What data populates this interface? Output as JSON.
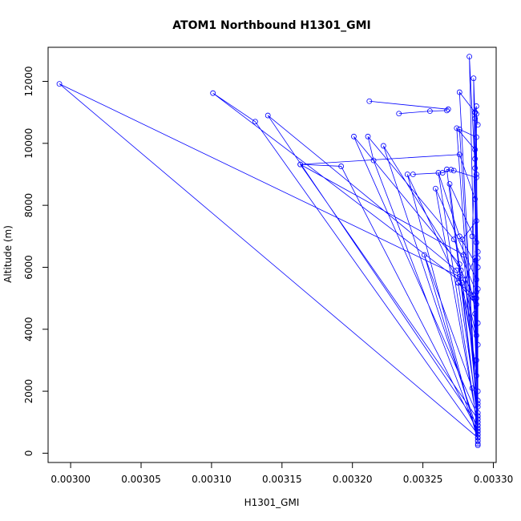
{
  "chart_data": {
    "type": "line",
    "title": "ATOM1 Northbound H1301_GMI",
    "xlabel": "H1301_GMI",
    "ylabel": "Altitude (m)",
    "xlim": [
      0.002984,
      0.003302
    ],
    "ylim": [
      -300,
      13100
    ],
    "xticks": [
      0.003,
      0.00305,
      0.0031,
      0.00315,
      0.0032,
      0.00325,
      0.0033
    ],
    "xtick_labels": [
      "0.00300",
      "0.00305",
      "0.00310",
      "0.00315",
      "0.00320",
      "0.00325",
      "0.00330"
    ],
    "yticks": [
      0,
      2000,
      4000,
      6000,
      8000,
      10000,
      12000
    ],
    "ytick_labels": [
      "0",
      "2000",
      "4000",
      "6000",
      "8000",
      "10000",
      "12000"
    ],
    "grid": false,
    "series_color": "#0000ff",
    "marker": "open-circle",
    "series": [
      {
        "points": [
          [
            0.003289,
            250
          ],
          [
            0.003289,
            400
          ],
          [
            0.003289,
            700
          ],
          [
            0.003289,
            1500
          ],
          [
            0.003288,
            3000
          ],
          [
            0.003286,
            5000
          ],
          [
            0.003285,
            7000
          ],
          [
            0.003287,
            9500
          ],
          [
            0.003288,
            11200
          ],
          [
            0.003287,
            11000
          ],
          [
            0.003288,
            9000
          ],
          [
            0.003289,
            6500
          ],
          [
            0.003287,
            4500
          ],
          [
            0.003289,
            2000
          ],
          [
            0.003289,
            800
          ],
          [
            0.003289,
            300
          ],
          [
            0.003287,
            3000
          ],
          [
            0.003276,
            5700
          ],
          [
            0.002992,
            11920
          ],
          [
            0.003289,
            500
          ],
          [
            0.003288,
            2500
          ],
          [
            0.003278,
            5500
          ],
          [
            0.003101,
            11620
          ],
          [
            0.003131,
            10700
          ],
          [
            0.003289,
            600
          ],
          [
            0.003289,
            3500
          ],
          [
            0.003274,
            5900
          ],
          [
            0.00314,
            10900
          ],
          [
            0.003289,
            900
          ],
          [
            0.003289,
            4200
          ],
          [
            0.003279,
            6400
          ],
          [
            0.003163,
            9320
          ],
          [
            0.003192,
            9260
          ],
          [
            0.003289,
            700
          ],
          [
            0.003288,
            3800
          ],
          [
            0.003276,
            6100
          ],
          [
            0.003201,
            10220
          ],
          [
            0.003289,
            1200
          ],
          [
            0.003288,
            5200
          ],
          [
            0.003272,
            6900
          ],
          [
            0.003211,
            10220
          ],
          [
            0.003215,
            9450
          ],
          [
            0.003289,
            600
          ],
          [
            0.003285,
            2100
          ],
          [
            0.003251,
            6400
          ],
          [
            0.003289,
            500
          ],
          [
            0.003287,
            5000
          ],
          [
            0.003277,
            5900
          ],
          [
            0.003222,
            9920
          ],
          [
            0.003289,
            700
          ],
          [
            0.003288,
            4800
          ],
          [
            0.003275,
            5500
          ],
          [
            0.003239,
            9000
          ],
          [
            0.003289,
            400
          ],
          [
            0.003289,
            6000
          ],
          [
            0.003276,
            7000
          ],
          [
            0.003261,
            9050
          ],
          [
            0.003289,
            800
          ],
          [
            0.003288,
            5600
          ],
          [
            0.003259,
            8540
          ],
          [
            0.003289,
            900
          ],
          [
            0.003288,
            6800
          ],
          [
            0.003269,
            8690
          ],
          [
            0.003289,
            1000
          ],
          [
            0.003287,
            8200
          ],
          [
            0.003276,
            9640
          ],
          [
            0.003163,
            9320
          ],
          [
            0.003289,
            1100
          ],
          [
            0.003287,
            9200
          ],
          [
            0.003283,
            12800
          ],
          [
            0.003289,
            700
          ],
          [
            0.003287,
            10800
          ],
          [
            0.003286,
            12100
          ],
          [
            0.003289,
            600
          ],
          [
            0.003287,
            11000
          ],
          [
            0.003276,
            11650
          ],
          [
            0.003289,
            500
          ],
          [
            0.003288,
            10200
          ],
          [
            0.003276,
            10450
          ],
          [
            0.003289,
            800
          ],
          [
            0.003287,
            9800
          ],
          [
            0.003274,
            10490
          ],
          [
            0.003289,
            900
          ],
          [
            0.003288,
            8900
          ],
          [
            0.003272,
            9120
          ],
          [
            0.003267,
            9160
          ],
          [
            0.003289,
            1000
          ],
          [
            0.003288,
            7500
          ],
          [
            0.003278,
            6900
          ],
          [
            0.003289,
            1100
          ],
          [
            0.003287,
            6300
          ],
          [
            0.00328,
            5600
          ],
          [
            0.003289,
            1200
          ],
          [
            0.003286,
            5100
          ],
          [
            0.003275,
            5500
          ],
          [
            0.003289,
            1300
          ],
          [
            0.003288,
            5000
          ],
          [
            0.003289,
            1700
          ],
          [
            0.003289,
            5300
          ],
          [
            0.003289,
            6300
          ],
          [
            0.003289,
            1600
          ],
          [
            0.003288,
            10950
          ],
          [
            0.003289,
            10600
          ]
        ]
      },
      {
        "points": [
          [
            0.003212,
            11360
          ],
          [
            0.003268,
            11100
          ]
        ]
      },
      {
        "points": [
          [
            0.003233,
            10960
          ],
          [
            0.003255,
            11040
          ],
          [
            0.003267,
            11060
          ]
        ]
      },
      {
        "points": [
          [
            0.003243,
            9000
          ],
          [
            0.003264,
            9050
          ],
          [
            0.00327,
            9150
          ]
        ]
      }
    ]
  }
}
